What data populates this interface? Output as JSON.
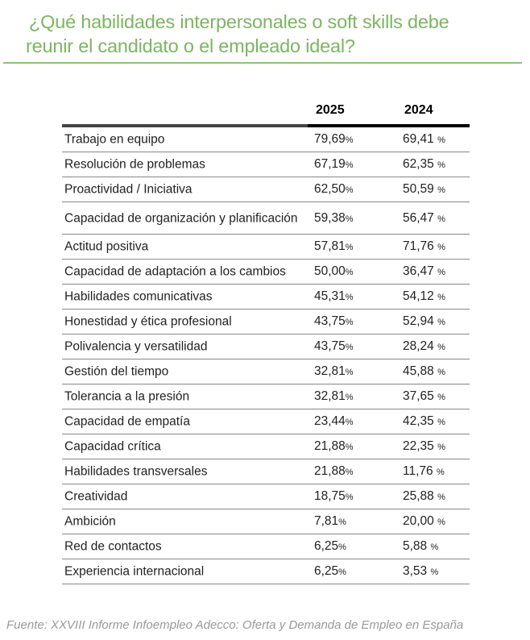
{
  "title_line1": "¿Qué habilidades interpersonales o soft skills debe",
  "title_line2": "reunir el candidato o el empleado ideal?",
  "table": {
    "columns": [
      "2025",
      "2024"
    ],
    "rows": [
      {
        "label": "Trabajo en equipo",
        "v2025": "79,69",
        "v2024": "69,41 "
      },
      {
        "label": "Resolución de problemas",
        "v2025": "67,19",
        "v2024": "62,35 "
      },
      {
        "label": "Proactividad / Iniciativa",
        "v2025": "62,50",
        "v2024": "50,59 "
      },
      {
        "label": "Capacidad de organización y planificación",
        "v2025": "59,38",
        "v2024": "56,47 "
      },
      {
        "label": "Actitud positiva",
        "v2025": "57,81",
        "v2024": "71,76 "
      },
      {
        "label": "Capacidad de adaptación a los cambios",
        "v2025": "50,00",
        "v2024": "36,47 "
      },
      {
        "label": "Habilidades comunicativas",
        "v2025": "45,31",
        "v2024": "54,12 "
      },
      {
        "label": "Honestidad y ética profesional",
        "v2025": "43,75",
        "v2024": "52,94 "
      },
      {
        "label": "Polivalencia y versatilidad",
        "v2025": "43,75",
        "v2024": "28,24 "
      },
      {
        "label": "Gestión del tiempo",
        "v2025": "32,81",
        "v2024": "45,88 "
      },
      {
        "label": "Tolerancia a la presión",
        "v2025": "32,81",
        "v2024": "37,65 "
      },
      {
        "label": "Capacidad de empatía",
        "v2025": "23,44",
        "v2024": "42,35 "
      },
      {
        "label": "Capacidad crítica",
        "v2025": "21,88",
        "v2024": "22,35 "
      },
      {
        "label": "Habilidades transversales",
        "v2025": "21,88",
        "v2024": "11,76 "
      },
      {
        "label": "Creatividad",
        "v2025": "18,75",
        "v2024": "25,88 "
      },
      {
        "label": "Ambición",
        "v2025": "7,81",
        "v2024": "20,00 "
      },
      {
        "label": "Red de contactos",
        "v2025": "6,25",
        "v2024": "5,88 "
      },
      {
        "label": "Experiencia internacional",
        "v2025": "6,25",
        "v2024": "3,53 "
      }
    ]
  },
  "percent_sign": "%",
  "footer": "Fuente: XXVIII Informe Infoempleo Adecco: Oferta y Demanda de Empleo en España",
  "colors": {
    "title": "#7bb661",
    "rule": "#8cc27a"
  }
}
